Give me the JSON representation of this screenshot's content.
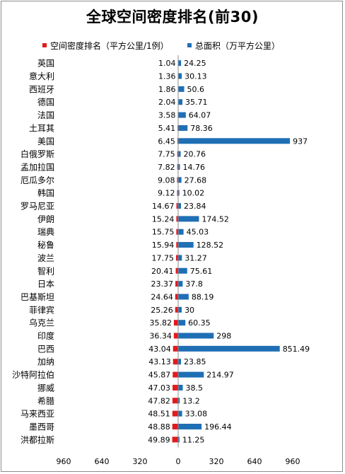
{
  "chart_data": {
    "type": "bar",
    "title": "全球空间密度排名(前30)",
    "legend_position": "top",
    "grid": false,
    "xlim": [
      -960,
      960
    ],
    "x_ticks": [
      960,
      640,
      320,
      0,
      320,
      640,
      960
    ],
    "categories": [
      "英国",
      "意大利",
      "西班牙",
      "德国",
      "法国",
      "土耳其",
      "美国",
      "白俄罗斯",
      "孟加拉国",
      "厄瓜多尔",
      "韩国",
      "罗马尼亚",
      "伊朗",
      "瑞典",
      "秘鲁",
      "波兰",
      "智利",
      "日本",
      "巴基斯坦",
      "菲律宾",
      "乌克兰",
      "印度",
      "巴西",
      "加纳",
      "沙特阿拉伯",
      "挪威",
      "希腊",
      "马来西亚",
      "墨西哥",
      "洪都拉斯"
    ],
    "series": [
      {
        "name": "空间密度排名（平方公里/1例）",
        "color": "#e31a1c",
        "direction": "left",
        "values": [
          "1.04",
          "1.36",
          "1.86",
          "2.04",
          "3.58",
          "5.41",
          "6.45",
          "7.75",
          "7.82",
          "9.08",
          "9.12",
          "14.67",
          "15.24",
          "15.75",
          "15.94",
          "17.75",
          "20.41",
          "23.37",
          "24.64",
          "25.26",
          "35.82",
          "36.34",
          "43.04",
          "43.13",
          "45.87",
          "47.03",
          "47.82",
          "48.51",
          "48.88",
          "49.89"
        ]
      },
      {
        "name": "总面积（万平方公里）",
        "color": "#1f6fb4",
        "direction": "right",
        "values": [
          "24.25",
          "30.13",
          "50.6",
          "35.71",
          "64.07",
          "78.36",
          "937",
          "20.76",
          "14.76",
          "27.68",
          "10.02",
          "23.84",
          "174.52",
          "45.03",
          "128.52",
          "31.27",
          "75.61",
          "37.8",
          "88.19",
          "30",
          "60.35",
          "298",
          "851.49",
          "23.85",
          "214.97",
          "38.5",
          "13.2",
          "33.08",
          "196.44",
          "11.25"
        ]
      }
    ]
  }
}
